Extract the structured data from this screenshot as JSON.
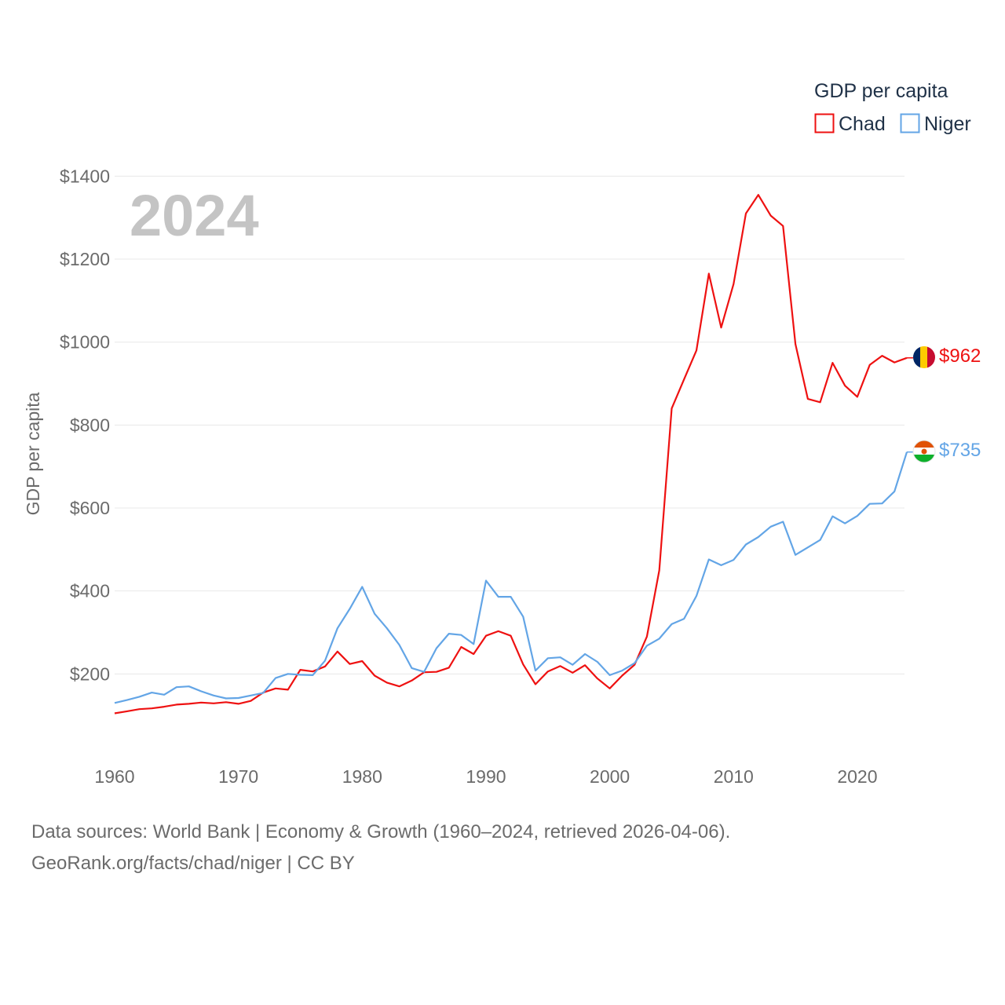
{
  "chart_data": {
    "type": "line",
    "title": "GDP per capita",
    "highlight_year": "2024",
    "ylabel": "GDP per capita",
    "xlabel": "",
    "xlim": [
      1960,
      2024
    ],
    "ylim": [
      0,
      1400
    ],
    "y_ticks": [
      200,
      400,
      600,
      800,
      1000,
      1200,
      1400
    ],
    "y_tick_labels": [
      "$200",
      "$400",
      "$600",
      "$800",
      "$1000",
      "$1200",
      "$1400"
    ],
    "x_ticks": [
      1960,
      1970,
      1980,
      1990,
      2000,
      2010,
      2020
    ],
    "x_tick_labels": [
      "1960",
      "1970",
      "1980",
      "1990",
      "2000",
      "2010",
      "2020"
    ],
    "grid": true,
    "legend": {
      "title": "GDP per capita",
      "position": "top-right",
      "entries": [
        "Chad",
        "Niger"
      ]
    },
    "x": [
      1960,
      1961,
      1962,
      1963,
      1964,
      1965,
      1966,
      1967,
      1968,
      1969,
      1970,
      1971,
      1972,
      1973,
      1974,
      1975,
      1976,
      1977,
      1978,
      1979,
      1980,
      1981,
      1982,
      1983,
      1984,
      1985,
      1986,
      1987,
      1988,
      1989,
      1990,
      1991,
      1992,
      1993,
      1994,
      1995,
      1996,
      1997,
      1998,
      1999,
      2000,
      2001,
      2002,
      2003,
      2004,
      2005,
      2006,
      2007,
      2008,
      2009,
      2010,
      2011,
      2012,
      2013,
      2014,
      2015,
      2016,
      2017,
      2018,
      2019,
      2020,
      2021,
      2022,
      2023,
      2024
    ],
    "series": [
      {
        "name": "Chad",
        "color": "#ee1111",
        "end_label": "$962",
        "flag": "chad-flag",
        "values": [
          105,
          110,
          115,
          117,
          121,
          126,
          128,
          131,
          129,
          132,
          128,
          135,
          155,
          165,
          162,
          210,
          206,
          218,
          254,
          224,
          231,
          196,
          179,
          170,
          184,
          204,
          205,
          215,
          265,
          248,
          292,
          303,
          292,
          223,
          175,
          206,
          219,
          203,
          221,
          189,
          165,
          196,
          222,
          290,
          450,
          840,
          910,
          980,
          1165,
          1035,
          1140,
          1310,
          1355,
          1305,
          1280,
          995,
          863,
          855,
          950,
          895,
          868,
          945,
          967,
          951,
          962
        ]
      },
      {
        "name": "Niger",
        "color": "#63a5e6",
        "end_label": "$735",
        "flag": "niger-flag",
        "values": [
          130,
          137,
          145,
          155,
          150,
          168,
          170,
          158,
          148,
          141,
          142,
          148,
          154,
          190,
          200,
          198,
          197,
          232,
          310,
          357,
          410,
          345,
          310,
          270,
          214,
          205,
          262,
          297,
          294,
          272,
          425,
          386,
          386,
          338,
          208,
          238,
          240,
          222,
          248,
          229,
          197,
          208,
          226,
          268,
          285,
          320,
          333,
          388,
          476,
          462,
          475,
          512,
          530,
          555,
          567,
          487,
          505,
          523,
          580,
          563,
          581,
          610,
          611,
          640,
          735
        ]
      }
    ]
  },
  "footer": {
    "line1": "Data sources: World Bank | Economy & Growth (1960–2024, retrieved 2026-04-06).",
    "line2": "GeoRank.org/facts/chad/niger | CC BY"
  }
}
